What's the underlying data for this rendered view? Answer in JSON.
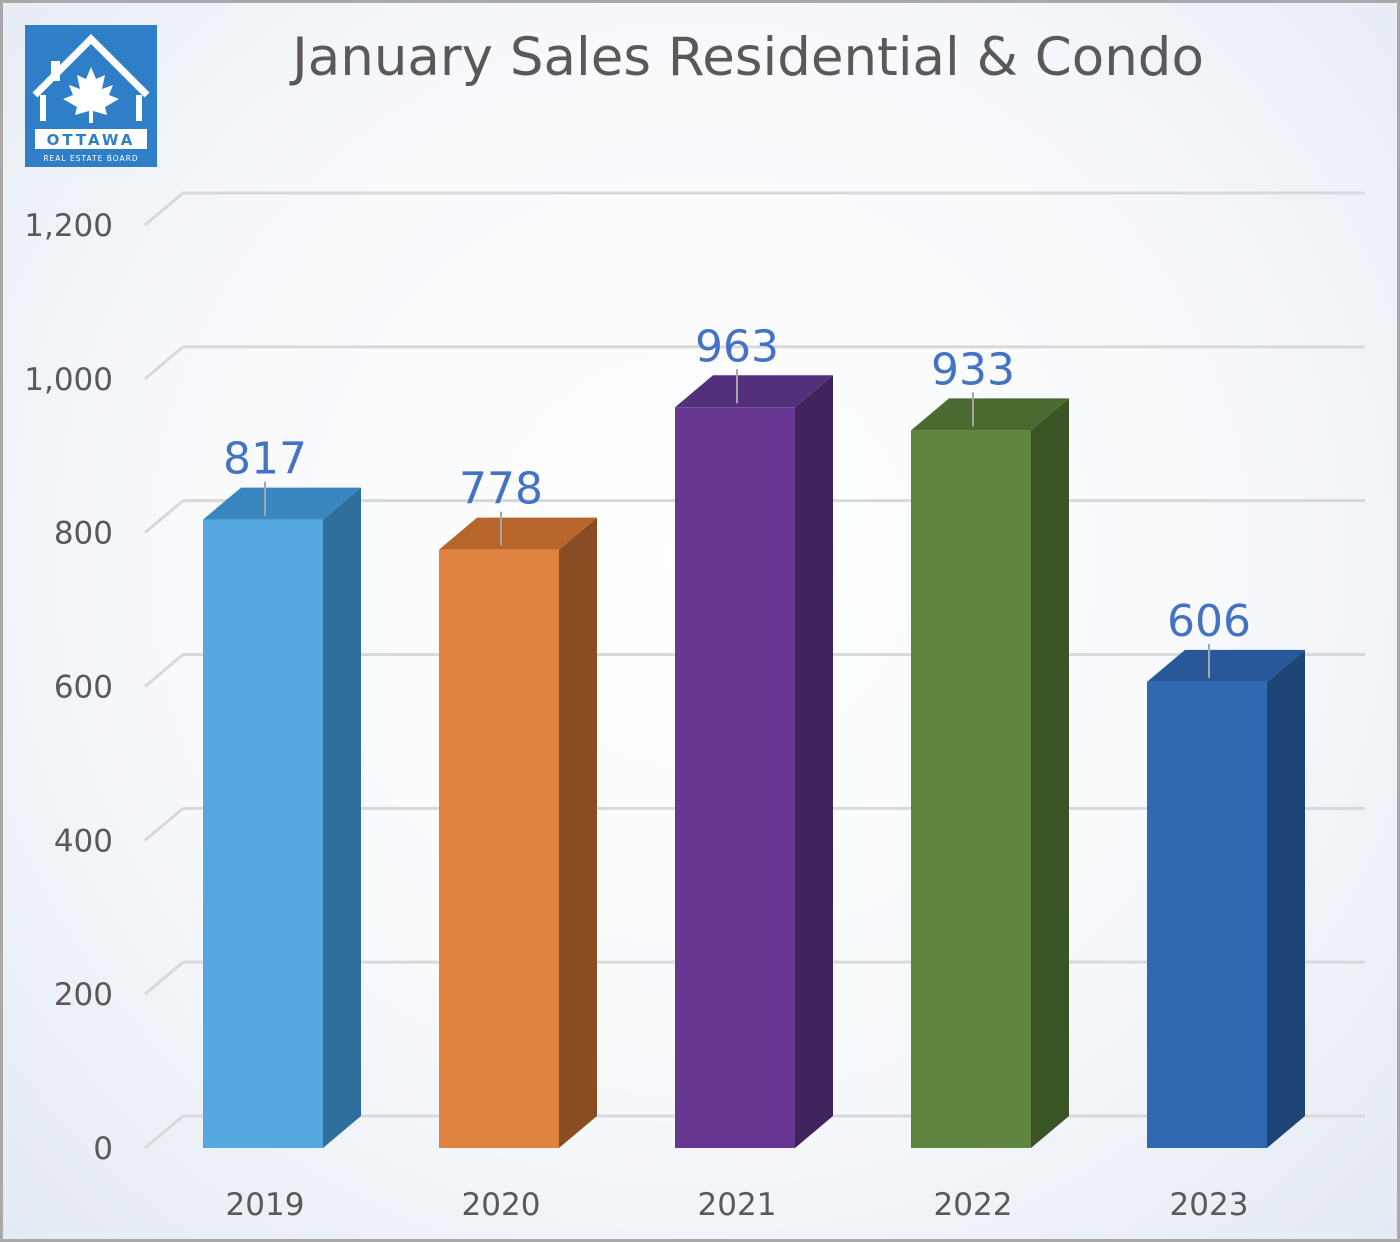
{
  "logo": {
    "wordmark": "OTTAWA",
    "tagline": "REAL ESTATE BOARD",
    "icon": "house-maple-leaf-icon",
    "color": "#2f7fc8"
  },
  "chart_data": {
    "type": "bar",
    "title": "January Sales Residential & Condo",
    "categories": [
      "2019",
      "2020",
      "2021",
      "2022",
      "2023"
    ],
    "values": [
      817,
      778,
      963,
      933,
      606
    ],
    "data_labels": [
      "817",
      "778",
      "963",
      "933",
      "606"
    ],
    "y_ticks": [
      {
        "value": 0,
        "label": "0"
      },
      {
        "value": 200,
        "label": "200"
      },
      {
        "value": 400,
        "label": "400"
      },
      {
        "value": 600,
        "label": "600"
      },
      {
        "value": 800,
        "label": "800"
      },
      {
        "value": 1000,
        "label": "1,000"
      },
      {
        "value": 1200,
        "label": "1,200"
      }
    ],
    "ylim": [
      0,
      1200
    ],
    "grid": true,
    "legend": "none",
    "style": "3d-column",
    "bar_colors": [
      "#56a9e0",
      "#e08341",
      "#683791",
      "#5e843e",
      "#3168b2"
    ],
    "bar_side_colors": [
      "#2e6f9c",
      "#8a4d23",
      "#40235d",
      "#3a5423",
      "#1f4577"
    ],
    "bar_top_colors": [
      "#3a86be",
      "#b8652b",
      "#54307c",
      "#4a6a30",
      "#28589a"
    ],
    "label_color": "#4472c4",
    "axis_text_color": "#595959",
    "grid_color": "#d9d9d9"
  }
}
